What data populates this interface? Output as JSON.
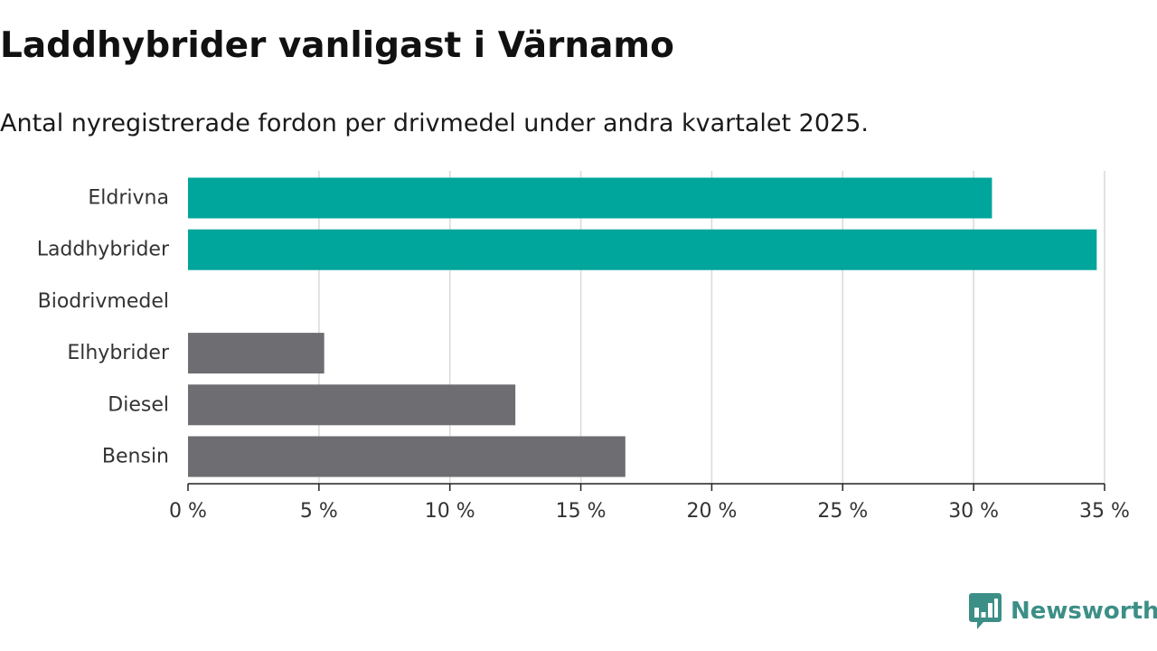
{
  "colors": {
    "highlight": "#00a59b",
    "muted": "#6e6d72",
    "grid": "#d9d9d9",
    "axis": "#222222",
    "brand": "#3c8f86"
  },
  "brand": {
    "name": "Newsworthy",
    "icon": "newsworthy-chart-bubble-icon"
  },
  "chart_data": {
    "type": "bar",
    "orientation": "horizontal",
    "title": "Laddhybrider vanligast i Värnamo",
    "subtitle": "Antal nyregistrerade fordon per drivmedel under andra kvartalet 2025.",
    "xlabel": "",
    "ylabel": "",
    "categories": [
      "Eldrivna",
      "Laddhybrider",
      "Biodrivmedel",
      "Elhybrider",
      "Diesel",
      "Bensin"
    ],
    "values": [
      30.7,
      34.7,
      0,
      5.2,
      12.5,
      16.7
    ],
    "highlighted": [
      true,
      true,
      false,
      false,
      false,
      false
    ],
    "unit": "%",
    "xlim": [
      0,
      35
    ],
    "ticks": [
      0,
      5,
      10,
      15,
      20,
      25,
      30,
      35
    ],
    "tick_labels": [
      "0 %",
      "5 %",
      "10 %",
      "15 %",
      "20 %",
      "25 %",
      "30 %",
      "35 %"
    ],
    "grid": true,
    "legend": "none"
  }
}
